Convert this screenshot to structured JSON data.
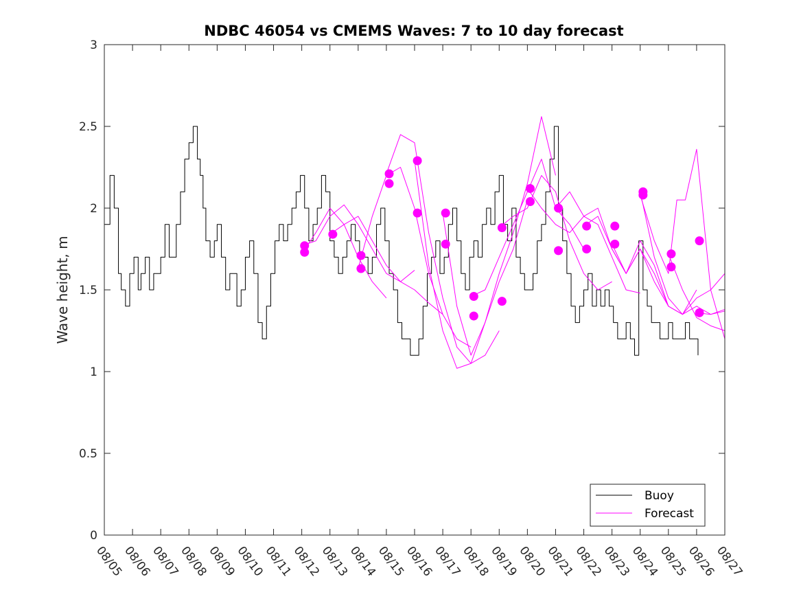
{
  "chart_data": {
    "type": "line",
    "title": "NDBC 46054 vs CMEMS Waves: 7 to 10 day forecast",
    "xlabel": "",
    "ylabel": "Wave height, m",
    "xlim": [
      0,
      22
    ],
    "ylim": [
      0,
      3
    ],
    "x_ticks": [
      0,
      1,
      2,
      3,
      4,
      5,
      6,
      7,
      8,
      9,
      10,
      11,
      12,
      13,
      14,
      15,
      16,
      17,
      18,
      19,
      20,
      21,
      22
    ],
    "x_tick_labels": [
      "08/05",
      "08/06",
      "08/07",
      "08/08",
      "08/09",
      "08/10",
      "08/11",
      "08/12",
      "08/13",
      "08/14",
      "08/15",
      "08/16",
      "08/17",
      "08/18",
      "08/19",
      "08/20",
      "08/21",
      "08/22",
      "08/23",
      "08/24",
      "08/25",
      "08/26",
      "08/27"
    ],
    "y_ticks": [
      0,
      0.5,
      1,
      1.5,
      2,
      2.5,
      3
    ],
    "y_tick_labels": [
      "0",
      "0.5",
      "1",
      "1.5",
      "2",
      "2.5",
      "3"
    ],
    "x_units": "days since 08/05",
    "legend": {
      "position": "bottom-right",
      "entries": [
        {
          "label": "Buoy",
          "color": "#000000"
        },
        {
          "label": "Forecast",
          "color": "#ff00ff"
        }
      ]
    },
    "series": [
      {
        "name": "Buoy",
        "color": "#000000",
        "x": [
          0,
          0.2,
          0.35,
          0.5,
          0.6,
          0.75,
          0.9,
          1.05,
          1.2,
          1.3,
          1.45,
          1.6,
          1.75,
          1.85,
          2.0,
          2.15,
          2.3,
          2.45,
          2.55,
          2.7,
          2.85,
          3.0,
          3.15,
          3.3,
          3.4,
          3.5,
          3.6,
          3.75,
          3.9,
          4.0,
          4.15,
          4.3,
          4.45,
          4.55,
          4.7,
          4.85,
          5.0,
          5.15,
          5.3,
          5.45,
          5.6,
          5.75,
          5.9,
          6.05,
          6.2,
          6.35,
          6.5,
          6.65,
          6.8,
          6.95,
          7.1,
          7.25,
          7.4,
          7.55,
          7.7,
          7.85,
          8.0,
          8.15,
          8.3,
          8.45,
          8.6,
          8.75,
          8.9,
          9.05,
          9.2,
          9.35,
          9.5,
          9.65,
          9.8,
          9.95,
          10.1,
          10.25,
          10.4,
          10.55,
          10.7,
          10.85,
          11.0,
          11.15,
          11.3,
          11.45,
          11.6,
          11.75,
          11.9,
          12.05,
          12.2,
          12.35,
          12.5,
          12.65,
          12.8,
          12.95,
          13.1,
          13.25,
          13.4,
          13.55,
          13.7,
          13.85,
          14.0,
          14.15,
          14.3,
          14.45,
          14.6,
          14.75,
          14.9,
          15.05,
          15.2,
          15.35,
          15.5,
          15.65,
          15.8,
          15.95,
          16.1,
          16.25,
          16.4,
          16.55,
          16.7,
          16.85,
          17.0,
          17.15,
          17.3,
          17.45,
          17.6,
          17.75,
          17.9,
          18.05,
          18.2,
          18.35,
          18.5,
          18.65,
          18.8,
          18.95,
          19.1,
          19.25,
          19.4,
          19.55,
          19.7,
          19.85,
          20.0,
          20.15,
          20.3,
          20.45,
          20.6,
          20.75,
          20.9,
          21.05
        ],
        "y": [
          1.9,
          2.2,
          2.0,
          1.6,
          1.5,
          1.4,
          1.6,
          1.7,
          1.5,
          1.6,
          1.7,
          1.5,
          1.6,
          1.6,
          1.7,
          1.9,
          1.7,
          1.7,
          1.9,
          2.1,
          2.3,
          2.4,
          2.5,
          2.3,
          2.2,
          2.0,
          1.8,
          1.7,
          1.8,
          1.9,
          1.7,
          1.5,
          1.6,
          1.6,
          1.4,
          1.5,
          1.7,
          1.8,
          1.6,
          1.3,
          1.2,
          1.4,
          1.6,
          1.8,
          1.9,
          1.8,
          1.9,
          2.0,
          2.1,
          2.2,
          2.0,
          1.8,
          1.9,
          2.0,
          2.2,
          2.1,
          1.8,
          1.7,
          1.6,
          1.7,
          1.8,
          1.9,
          1.8,
          1.7,
          1.7,
          1.6,
          1.7,
          1.9,
          2.0,
          1.8,
          1.6,
          1.5,
          1.3,
          1.2,
          1.2,
          1.1,
          1.1,
          1.2,
          1.4,
          1.6,
          1.7,
          1.8,
          1.6,
          1.7,
          1.9,
          2.0,
          1.8,
          1.6,
          1.5,
          1.7,
          1.8,
          1.7,
          1.9,
          2.0,
          1.9,
          2.1,
          2.2,
          1.9,
          1.8,
          2.0,
          1.7,
          1.6,
          1.5,
          1.5,
          1.6,
          1.8,
          1.9,
          2.1,
          2.3,
          2.5,
          2.0,
          1.8,
          1.6,
          1.4,
          1.3,
          1.4,
          1.5,
          1.6,
          1.4,
          1.5,
          1.4,
          1.5,
          1.4,
          1.3,
          1.2,
          1.2,
          1.3,
          1.2,
          1.1,
          1.8,
          1.5,
          1.4,
          1.3,
          1.3,
          1.2,
          1.2,
          1.3,
          1.2,
          1.2,
          1.2,
          1.3,
          1.2,
          1.2,
          1.1
        ]
      },
      {
        "name": "Forecast run 1",
        "color": "#ff00ff",
        "x": [
          7.0,
          7.5,
          8.0,
          8.5,
          9.0,
          9.5,
          10.0
        ],
        "y": [
          1.72,
          1.85,
          2.0,
          1.9,
          1.7,
          1.55,
          1.45
        ]
      },
      {
        "name": "Forecast run 2",
        "color": "#ff00ff",
        "x": [
          7.0,
          7.5,
          8.0,
          8.5,
          9.0,
          9.5,
          10.0,
          10.5,
          11.0
        ],
        "y": [
          1.77,
          1.8,
          1.95,
          2.02,
          1.9,
          1.75,
          1.6,
          1.55,
          1.62
        ]
      },
      {
        "name": "Forecast run 3",
        "color": "#ff00ff",
        "x": [
          8.0,
          8.5,
          9.0,
          9.5,
          10.0,
          10.5,
          11.0,
          11.5,
          12.0
        ],
        "y": [
          1.84,
          1.9,
          1.95,
          1.8,
          1.65,
          1.55,
          1.5,
          1.42,
          1.35
        ]
      },
      {
        "name": "Forecast run 4",
        "color": "#ff00ff",
        "x": [
          9.0,
          9.5,
          10.0,
          10.5,
          11.0,
          11.5,
          12.0,
          12.5,
          13.0
        ],
        "y": [
          1.63,
          1.95,
          2.2,
          2.25,
          2.0,
          1.6,
          1.35,
          1.2,
          1.15
        ]
      },
      {
        "name": "Forecast run 5",
        "color": "#ff00ff",
        "x": [
          10.0,
          10.5,
          11.0,
          11.5,
          12.0,
          12.5,
          13.0,
          13.5,
          14.0
        ],
        "y": [
          2.21,
          2.45,
          2.4,
          1.85,
          1.45,
          1.15,
          1.05,
          1.1,
          1.25
        ]
      },
      {
        "name": "Forecast run 6",
        "color": "#ff00ff",
        "x": [
          11.0,
          11.5,
          12.0,
          12.5,
          13.0,
          13.5,
          14.0,
          14.5,
          15.0
        ],
        "y": [
          2.29,
          1.65,
          1.25,
          1.02,
          1.05,
          1.3,
          1.55,
          1.75,
          2.05
        ]
      },
      {
        "name": "Forecast run 7",
        "color": "#ff00ff",
        "x": [
          12.0,
          12.5,
          13.0,
          13.5,
          14.0,
          14.5,
          15.0,
          15.5,
          16.0
        ],
        "y": [
          1.97,
          1.4,
          1.1,
          1.3,
          1.6,
          1.85,
          2.15,
          2.56,
          2.2
        ]
      },
      {
        "name": "Forecast run 8",
        "color": "#ff00ff",
        "x": [
          13.0,
          13.5,
          14.0,
          14.5,
          15.0,
          15.5,
          16.0,
          16.5,
          17.0
        ],
        "y": [
          1.46,
          1.5,
          1.7,
          1.9,
          2.1,
          2.3,
          2.0,
          1.9,
          1.75
        ]
      },
      {
        "name": "Forecast run 9",
        "color": "#ff00ff",
        "x": [
          14.0,
          14.5,
          15.0,
          15.5,
          16.0,
          16.5,
          17.0,
          17.5,
          18.0
        ],
        "y": [
          1.88,
          1.95,
          2.0,
          2.2,
          2.1,
          1.8,
          1.6,
          1.5,
          1.55
        ]
      },
      {
        "name": "Forecast run 10",
        "color": "#ff00ff",
        "x": [
          15.0,
          15.5,
          16.0,
          16.5,
          17.0,
          17.5,
          18.0,
          18.5,
          19.0
        ],
        "y": [
          2.12,
          2.0,
          1.9,
          1.85,
          1.95,
          1.9,
          1.7,
          1.5,
          1.48
        ]
      },
      {
        "name": "Forecast run 11",
        "color": "#ff00ff",
        "x": [
          16.0,
          16.5,
          17.0,
          17.5,
          18.0,
          18.5,
          19.0,
          19.5,
          20.0
        ],
        "y": [
          2.0,
          2.1,
          1.95,
          2.0,
          1.75,
          1.6,
          1.8,
          1.65,
          1.4
        ]
      },
      {
        "name": "Forecast run 12",
        "color": "#ff00ff",
        "x": [
          17.0,
          17.5,
          18.0,
          18.5,
          19.0,
          19.5,
          20.0,
          20.5,
          21.0
        ],
        "y": [
          1.89,
          1.95,
          1.75,
          1.6,
          1.75,
          1.6,
          1.4,
          1.35,
          1.5
        ]
      },
      {
        "name": "Forecast run 13",
        "color": "#ff00ff",
        "x": [
          18.0,
          18.5,
          19.0,
          19.5,
          20.0,
          20.5,
          21.0,
          21.5,
          22.0
        ],
        "y": [
          1.78,
          1.6,
          1.75,
          1.55,
          1.4,
          1.35,
          1.45,
          1.5,
          1.6
        ]
      },
      {
        "name": "Forecast run 14",
        "color": "#ff00ff",
        "x": [
          19.0,
          19.5,
          20.0,
          20.5,
          21.0,
          21.5,
          22.0
        ],
        "y": [
          2.1,
          1.7,
          1.45,
          1.35,
          1.4,
          1.35,
          1.38
        ]
      },
      {
        "name": "Forecast run 15",
        "color": "#ff00ff",
        "x": [
          20.0,
          20.5,
          21.0,
          21.5,
          22.0
        ],
        "y": [
          1.72,
          1.5,
          1.33,
          1.28,
          1.25
        ]
      },
      {
        "name": "Forecast run 16",
        "color": "#ff00ff",
        "x": [
          21.0,
          21.5,
          22.0
        ],
        "y": [
          1.36,
          1.35,
          1.37
        ]
      },
      {
        "name": "Forecast run 17",
        "color": "#ff00ff",
        "x": [
          19.0,
          19.5,
          20.0,
          20.3,
          20.6,
          21.0,
          21.5,
          22.0
        ],
        "y": [
          2.08,
          1.8,
          1.6,
          2.05,
          2.05,
          2.36,
          1.5,
          1.2
        ]
      }
    ],
    "markers": {
      "name": "Forecast start points",
      "color": "#ff00ff",
      "x": [
        7.1,
        7.1,
        8.1,
        9.1,
        9.1,
        10.1,
        10.1,
        11.1,
        11.1,
        12.1,
        12.1,
        13.1,
        13.1,
        14.1,
        14.1,
        15.1,
        15.1,
        16.1,
        16.1,
        17.1,
        17.1,
        18.1,
        18.1,
        19.1,
        19.1,
        20.1,
        20.1,
        21.1,
        21.1
      ],
      "y": [
        1.77,
        1.73,
        1.84,
        1.71,
        1.63,
        2.21,
        2.15,
        2.29,
        1.97,
        1.97,
        1.78,
        1.46,
        1.34,
        1.88,
        1.43,
        2.12,
        2.04,
        2.0,
        1.74,
        1.89,
        1.75,
        1.89,
        1.78,
        2.1,
        2.08,
        1.72,
        1.64,
        1.8,
        1.36
      ]
    }
  }
}
